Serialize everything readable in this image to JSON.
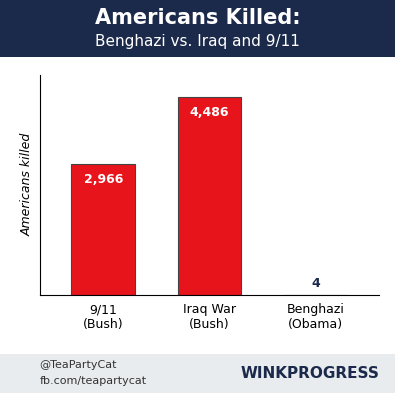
{
  "chart_data": {
    "type": "bar",
    "title": "Americans Killed:",
    "subtitle": "Benghazi vs. Iraq and 9/11",
    "y_label": "Americans killed",
    "categories": [
      "9/11\n(Bush)",
      "Iraq War\n(Bush)",
      "Benghazi\n(Obama)"
    ],
    "values": [
      2966,
      4486,
      4
    ],
    "value_labels": [
      "2,966",
      "4,486",
      "4"
    ],
    "colors": [
      "#e8141c",
      "#e8141c",
      "#1a1aff"
    ],
    "ylim": [
      0,
      5000
    ],
    "data_labels": true,
    "tick_labels": "x",
    "grid": false,
    "annotations": [
      "@TeaPartyCat",
      "fb.com/teapartycat",
      "WINKPROGRESS"
    ]
  }
}
